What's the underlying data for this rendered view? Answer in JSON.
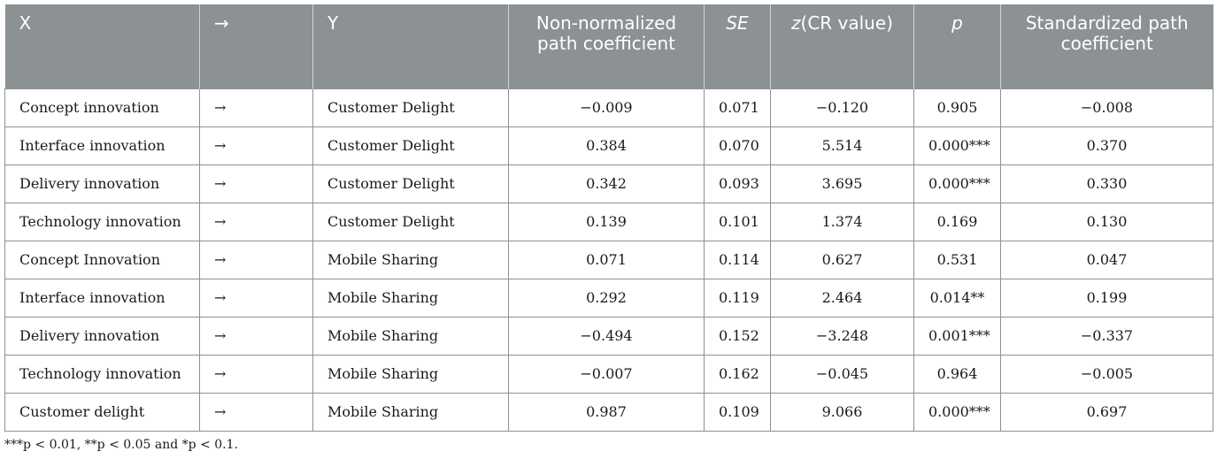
{
  "table": {
    "headers": {
      "x": "X",
      "arrow": "→",
      "y": "Y",
      "nonnormalized": "Non-normalized path coefficient",
      "se": "SE",
      "z_italic": "z",
      "z_rest": "(CR value)",
      "p": "p",
      "standardized": "Standardized path coefficient"
    },
    "rows": [
      {
        "x": "Concept innovation",
        "arrow": "→",
        "y": "Customer Delight",
        "nonnormalized": "−0.009",
        "se": "0.071",
        "z": "−0.120",
        "p": "0.905",
        "standardized": "−0.008"
      },
      {
        "x": "Interface innovation",
        "arrow": "→",
        "y": "Customer Delight",
        "nonnormalized": "0.384",
        "se": "0.070",
        "z": "5.514",
        "p": "0.000***",
        "standardized": "0.370"
      },
      {
        "x": "Delivery innovation",
        "arrow": "→",
        "y": "Customer Delight",
        "nonnormalized": "0.342",
        "se": "0.093",
        "z": "3.695",
        "p": "0.000***",
        "standardized": "0.330"
      },
      {
        "x": "Technology innovation",
        "arrow": "→",
        "y": "Customer Delight",
        "nonnormalized": "0.139",
        "se": "0.101",
        "z": "1.374",
        "p": "0.169",
        "standardized": "0.130"
      },
      {
        "x": "Concept Innovation",
        "arrow": "→",
        "y": "Mobile Sharing",
        "nonnormalized": "0.071",
        "se": "0.114",
        "z": "0.627",
        "p": "0.531",
        "standardized": "0.047"
      },
      {
        "x": "Interface innovation",
        "arrow": "→",
        "y": "Mobile Sharing",
        "nonnormalized": "0.292",
        "se": "0.119",
        "z": "2.464",
        "p": "0.014**",
        "standardized": "0.199"
      },
      {
        "x": "Delivery innovation",
        "arrow": "→",
        "y": "Mobile Sharing",
        "nonnormalized": "−0.494",
        "se": "0.152",
        "z": "−3.248",
        "p": "0.001***",
        "standardized": "−0.337"
      },
      {
        "x": "Technology innovation",
        "arrow": "→",
        "y": "Mobile Sharing",
        "nonnormalized": "−0.007",
        "se": "0.162",
        "z": "−0.045",
        "p": "0.964",
        "standardized": "−0.005"
      },
      {
        "x": "Customer delight",
        "arrow": "→",
        "y": "Mobile Sharing",
        "nonnormalized": "0.987",
        "se": "0.109",
        "z": "9.066",
        "p": "0.000***",
        "standardized": "0.697"
      }
    ]
  },
  "footnote": "***p < 0.01, **p < 0.05 and *p < 0.1.",
  "colors": {
    "header_bg": "#8c9193",
    "header_text": "#ffffff",
    "border": "#8c9193"
  }
}
